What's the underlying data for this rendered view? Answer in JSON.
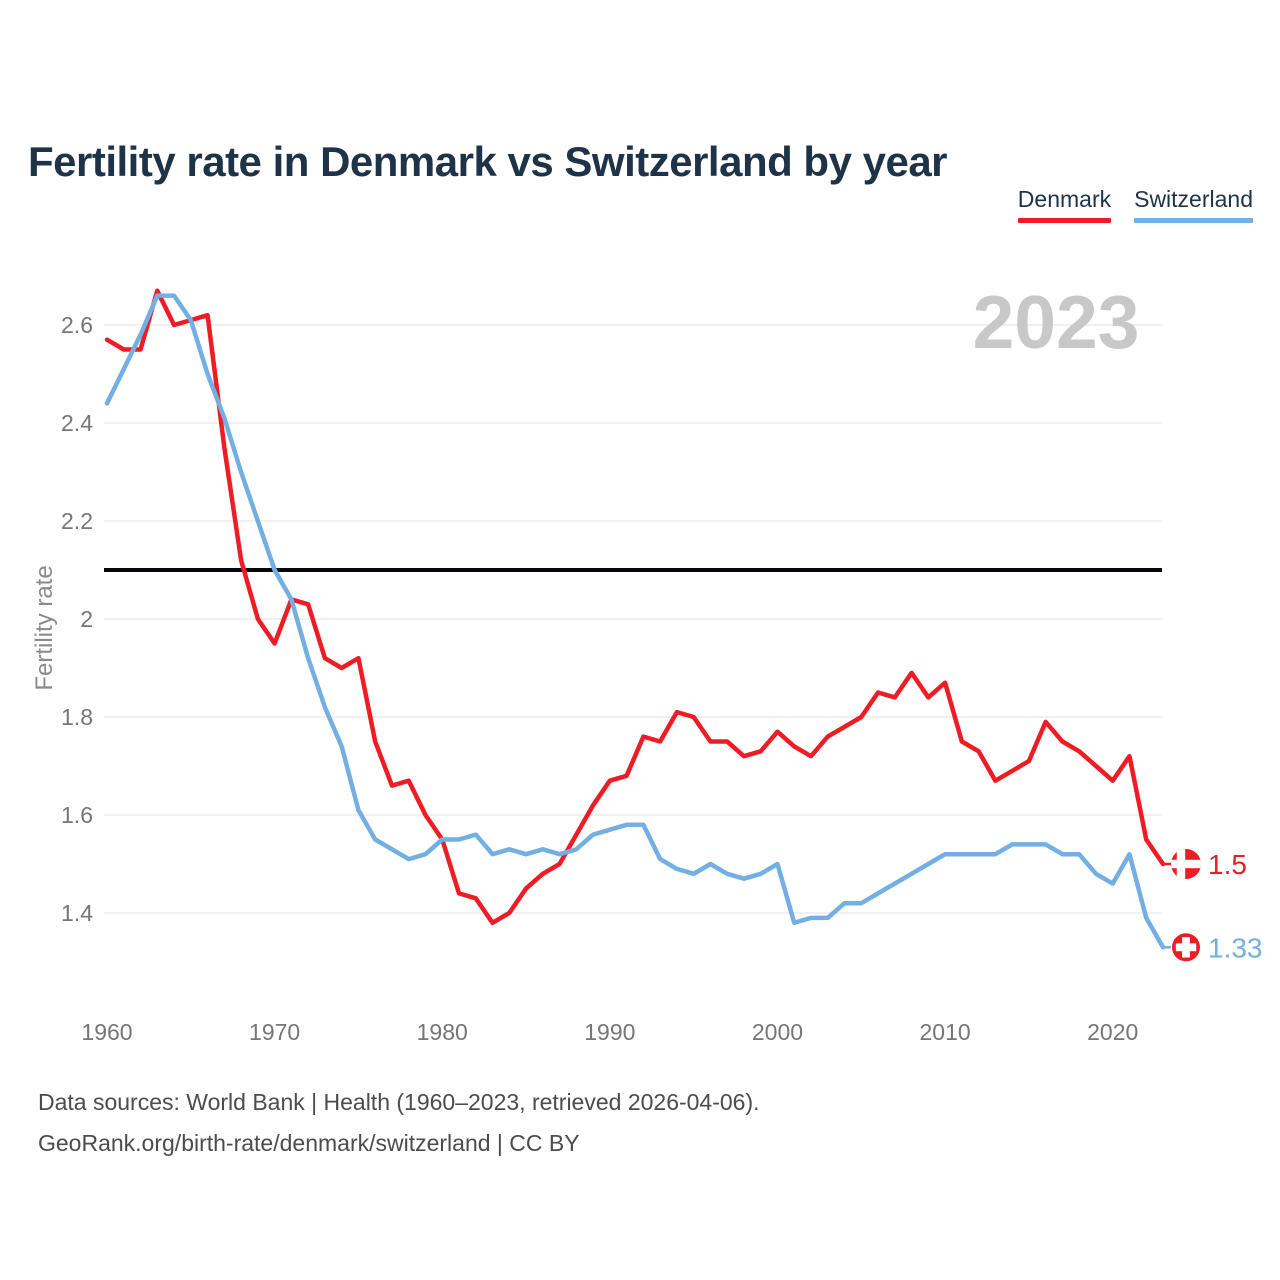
{
  "header": {
    "title": "Fertility rate in Denmark vs Switzerland by year"
  },
  "legend": {
    "items": [
      {
        "label": "Denmark",
        "color": "#ee1c24"
      },
      {
        "label": "Switzerland",
        "color": "#73afe2"
      }
    ]
  },
  "watermark": {
    "text": "2023"
  },
  "chart_data": {
    "type": "line",
    "title": "Fertility rate in Denmark vs Switzerland by year",
    "xlabel": "",
    "ylabel": "Fertility rate",
    "xlim": [
      1960,
      2023
    ],
    "ylim": [
      1.27,
      2.72
    ],
    "grid": true,
    "legend_position": "top-right",
    "x": [
      1960,
      1961,
      1962,
      1963,
      1964,
      1965,
      1966,
      1967,
      1968,
      1969,
      1970,
      1971,
      1972,
      1973,
      1974,
      1975,
      1976,
      1977,
      1978,
      1979,
      1980,
      1981,
      1982,
      1983,
      1984,
      1985,
      1986,
      1987,
      1988,
      1989,
      1990,
      1991,
      1992,
      1993,
      1994,
      1995,
      1996,
      1997,
      1998,
      1999,
      2000,
      2001,
      2002,
      2003,
      2004,
      2005,
      2006,
      2007,
      2008,
      2009,
      2010,
      2011,
      2012,
      2013,
      2014,
      2015,
      2016,
      2017,
      2018,
      2019,
      2020,
      2021,
      2022,
      2023
    ],
    "series": [
      {
        "name": "Denmark",
        "color": "#ee1c24",
        "values": [
          2.57,
          2.55,
          2.55,
          2.67,
          2.6,
          2.61,
          2.62,
          2.35,
          2.12,
          2.0,
          1.95,
          2.04,
          2.03,
          1.92,
          1.9,
          1.92,
          1.75,
          1.66,
          1.67,
          1.6,
          1.55,
          1.44,
          1.43,
          1.38,
          1.4,
          1.45,
          1.48,
          1.5,
          1.56,
          1.62,
          1.67,
          1.68,
          1.76,
          1.75,
          1.81,
          1.8,
          1.75,
          1.75,
          1.72,
          1.73,
          1.77,
          1.74,
          1.72,
          1.76,
          1.78,
          1.8,
          1.85,
          1.84,
          1.89,
          1.84,
          1.87,
          1.75,
          1.73,
          1.67,
          1.69,
          1.71,
          1.79,
          1.75,
          1.73,
          1.7,
          1.67,
          1.72,
          1.55,
          1.5
        ]
      },
      {
        "name": "Switzerland",
        "color": "#73afe2",
        "values": [
          2.44,
          2.51,
          2.58,
          2.66,
          2.66,
          2.61,
          2.5,
          2.41,
          2.3,
          2.2,
          2.1,
          2.04,
          1.92,
          1.82,
          1.74,
          1.61,
          1.55,
          1.53,
          1.51,
          1.52,
          1.55,
          1.55,
          1.56,
          1.52,
          1.53,
          1.52,
          1.53,
          1.52,
          1.53,
          1.56,
          1.57,
          1.58,
          1.58,
          1.51,
          1.49,
          1.48,
          1.5,
          1.48,
          1.47,
          1.48,
          1.5,
          1.38,
          1.39,
          1.39,
          1.42,
          1.42,
          1.44,
          1.46,
          1.48,
          1.5,
          1.52,
          1.52,
          1.52,
          1.52,
          1.54,
          1.54,
          1.54,
          1.52,
          1.52,
          1.48,
          1.46,
          1.52,
          1.39,
          1.33
        ]
      }
    ],
    "yticks": {
      "values": [
        2.6,
        2.4,
        2.2,
        2.0,
        1.8,
        1.6,
        1.4
      ],
      "labels": [
        "2.6",
        "2.4",
        "2.2",
        "2",
        "1.8",
        "1.6",
        "1.4"
      ]
    },
    "xticks": {
      "values": [
        1960,
        1970,
        1980,
        1990,
        2000,
        2010,
        2020
      ],
      "labels": [
        "1960",
        "1970",
        "1980",
        "1990",
        "2000",
        "2010",
        "2020"
      ]
    },
    "reference_line": {
      "value": 2.1,
      "color": "#05070f"
    },
    "end_labels": [
      {
        "series": "Denmark",
        "text": "1.5",
        "value": 1.5,
        "flag": "denmark-flag-icon"
      },
      {
        "series": "Switzerland",
        "text": "1.33",
        "value": 1.33,
        "flag": "switzerland-flag-icon"
      }
    ]
  },
  "colors": {
    "title_navy": "#1e3348",
    "axis_gray": "#767676",
    "axis_title_gray": "#8a8a8a",
    "watermark_gray": "#c8c8c8",
    "gridline": "#ececec",
    "footer_gray": "#4c4c4c",
    "flag_red": "#ee1c24",
    "flag_white": "#ffffff"
  },
  "footer": {
    "line1": "Data sources: World Bank | Health (1960–2023, retrieved 2026-04-06).",
    "line2": "GeoRank.org/birth-rate/denmark/switzerland | CC BY"
  }
}
